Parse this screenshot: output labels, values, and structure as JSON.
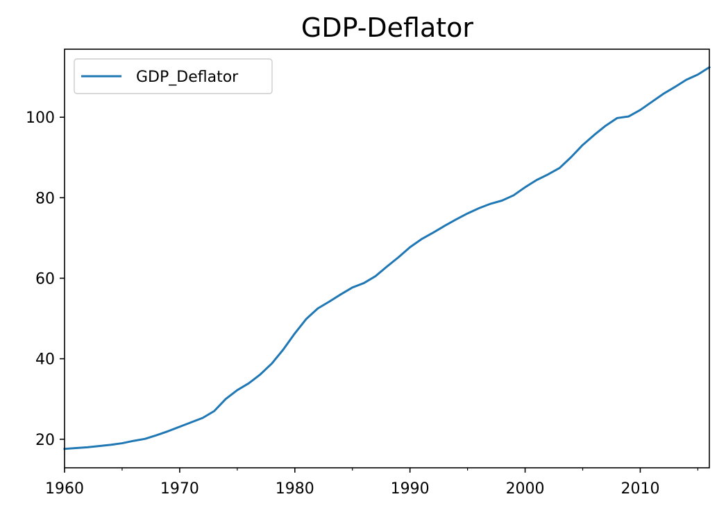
{
  "chart_data": {
    "type": "line",
    "title": "GDP-Deflator",
    "xlabel": "",
    "ylabel": "",
    "xlim": [
      1960,
      2016
    ],
    "ylim": [
      12.9,
      116.9
    ],
    "x_ticks": [
      1960,
      1970,
      1980,
      1990,
      2000,
      2010
    ],
    "x_tick_labels": [
      "1960",
      "1970",
      "1980",
      "1990",
      "2000",
      "2010"
    ],
    "x_minor_ticks": [
      1965,
      1975,
      1985,
      1995,
      2005,
      2015
    ],
    "y_ticks": [
      20,
      40,
      60,
      80,
      100
    ],
    "y_tick_labels": [
      "20",
      "40",
      "60",
      "80",
      "100"
    ],
    "grid": false,
    "legend_position": "top-left",
    "series": [
      {
        "name": "GDP_Deflator",
        "color": "#1f77b4",
        "x": [
          1960,
          1961,
          1962,
          1963,
          1964,
          1965,
          1966,
          1967,
          1968,
          1969,
          1970,
          1971,
          1972,
          1973,
          1974,
          1975,
          1976,
          1977,
          1978,
          1979,
          1980,
          1981,
          1982,
          1983,
          1984,
          1985,
          1986,
          1987,
          1988,
          1989,
          1990,
          1991,
          1992,
          1993,
          1994,
          1995,
          1996,
          1997,
          1998,
          1999,
          2000,
          2001,
          2002,
          2003,
          2004,
          2005,
          2006,
          2007,
          2008,
          2009,
          2010,
          2011,
          2012,
          2013,
          2014,
          2015,
          2016
        ],
        "values": [
          17.6,
          17.8,
          18.0,
          18.3,
          18.6,
          19.0,
          19.6,
          20.1,
          21.0,
          22.0,
          23.1,
          24.2,
          25.3,
          27.0,
          30.0,
          32.2,
          33.9,
          36.1,
          38.8,
          42.3,
          46.3,
          49.9,
          52.5,
          54.2,
          56.0,
          57.7,
          58.8,
          60.5,
          62.9,
          65.2,
          67.7,
          69.7,
          71.3,
          73.0,
          74.6,
          76.1,
          77.4,
          78.5,
          79.3,
          80.6,
          82.6,
          84.4,
          85.8,
          87.4,
          90.1,
          93.1,
          95.6,
          97.9,
          99.8,
          100.2,
          101.8,
          103.8,
          105.8,
          107.5,
          109.3,
          110.6,
          112.4
        ]
      }
    ]
  }
}
